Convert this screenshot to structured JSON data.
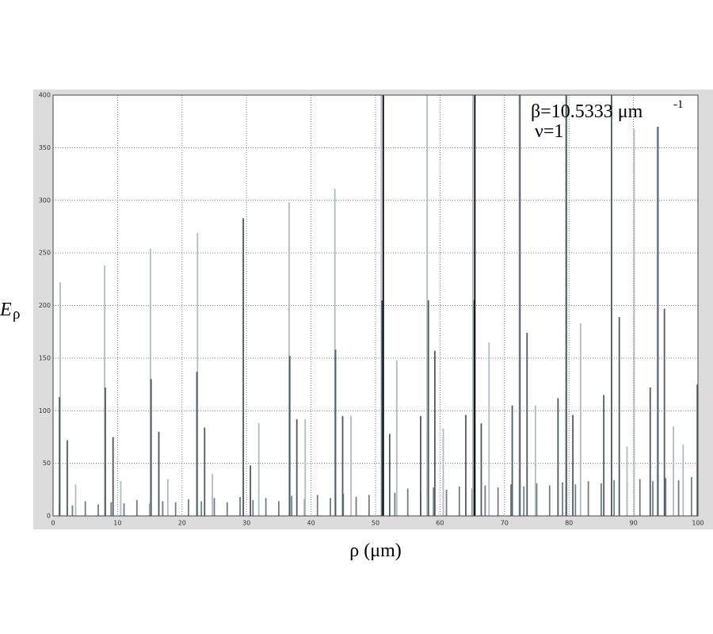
{
  "chart_data": {
    "type": "spike",
    "xlabel": "ρ (μm)",
    "ylabel": "E",
    "ylabel_sub": "ρ",
    "annotation": "β=10.5333 μm",
    "annotation_sup": "-1",
    "annotation2": "ν=1",
    "xlim": [
      0,
      100
    ],
    "xticks": [
      0,
      10,
      20,
      30,
      40,
      50,
      60,
      70,
      80,
      90,
      100
    ],
    "ylim": [
      0,
      400
    ],
    "yticks": [
      0,
      50,
      100,
      150,
      200,
      250,
      300,
      350,
      400
    ],
    "grid": true,
    "series": [
      {
        "color": "#6f7f84",
        "x": [
          1,
          3,
          5,
          7,
          9,
          11,
          13,
          15,
          17,
          19,
          21,
          23,
          25,
          27,
          29,
          31,
          33,
          35,
          37,
          39,
          41,
          43,
          45,
          47,
          49,
          51,
          53,
          55,
          57,
          59,
          61,
          63,
          65,
          67,
          69,
          71,
          73,
          75,
          77,
          79,
          81,
          83,
          85,
          87,
          89,
          91,
          93,
          95,
          97,
          99
        ],
        "values": [
          12,
          10,
          14,
          11,
          13,
          12,
          15,
          12,
          14,
          13,
          16,
          14,
          17,
          13,
          18,
          15,
          17,
          14,
          19,
          16,
          20,
          17,
          21,
          18,
          20,
          24,
          22,
          26,
          23,
          27,
          25,
          28,
          26,
          29,
          27,
          30,
          28,
          31,
          29,
          32,
          30,
          33,
          31,
          34,
          32,
          35,
          33,
          36,
          34,
          37
        ]
      },
      {
        "color": "#aebdc3",
        "x": [
          1.1,
          8.0,
          15.1,
          22.4,
          29.5,
          36.6,
          43.7,
          50.9,
          58.0,
          65.1,
          72.3,
          79.5,
          86.6,
          93.7,
          3.5,
          10.5,
          17.8,
          24.7,
          31.9,
          39.1,
          46.2,
          53.3,
          60.5,
          67.6,
          74.8,
          81.8,
          89.0,
          96.2,
          90.1,
          97.7
        ],
        "values": [
          222,
          238,
          254,
          269,
          283,
          298,
          311,
          400,
          400,
          400,
          400,
          400,
          400,
          370,
          30,
          33,
          35,
          40,
          88,
          92,
          95,
          148,
          83,
          165,
          105,
          183,
          66,
          85,
          368,
          68
        ]
      },
      {
        "color": "#4d5c60",
        "x": [
          1.0,
          2.2,
          8.1,
          9.3,
          15.2,
          16.4,
          22.3,
          23.5,
          29.5,
          30.6,
          36.7,
          37.8,
          43.8,
          44.9,
          51.0,
          52.2,
          58.2,
          59.2,
          65.3,
          66.4,
          72.4,
          73.5,
          79.6,
          80.6,
          86.6,
          87.8,
          93.8,
          94.8,
          57.0,
          64.0,
          71.2,
          78.3,
          85.4,
          92.6,
          99.9
        ],
        "values": [
          113,
          72,
          122,
          75,
          130,
          80,
          137,
          84,
          283,
          48,
          152,
          92,
          158,
          95,
          205,
          78,
          205,
          157,
          205,
          88,
          400,
          174,
          400,
          96,
          400,
          189,
          370,
          197,
          95,
          96,
          105,
          112,
          115,
          122,
          125
        ]
      },
      {
        "color": "#000000",
        "x": [
          51.2,
          65.4
        ],
        "values": [
          400,
          400
        ]
      }
    ]
  }
}
